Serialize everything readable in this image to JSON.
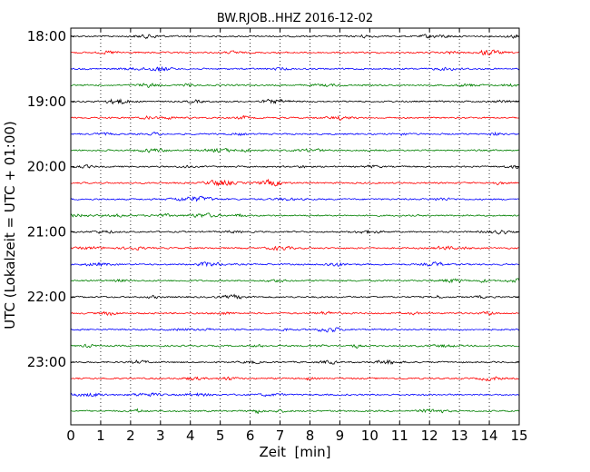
{
  "chart_data": {
    "type": "line",
    "title": "BW.RJOB..HHZ 2016-12-02",
    "xlabel": "Zeit  [min]",
    "ylabel": "UTC (Lokalzeit = UTC + 01:00)",
    "xlim": [
      0,
      15
    ],
    "x_ticks": [
      "0",
      "1",
      "2",
      "3",
      "4",
      "5",
      "6",
      "7",
      "8",
      "9",
      "10",
      "11",
      "12",
      "13",
      "14",
      "15"
    ],
    "y_tick_labels": [
      "18:00",
      "19:00",
      "20:00",
      "21:00",
      "22:00",
      "23:00"
    ],
    "grid": "x-dotted",
    "trace_interval_minutes": 15,
    "trace_start": "18:00",
    "trace_count": 24,
    "color_cycle": [
      "#000000",
      "#ff0000",
      "#0000ff",
      "#008000"
    ]
  }
}
